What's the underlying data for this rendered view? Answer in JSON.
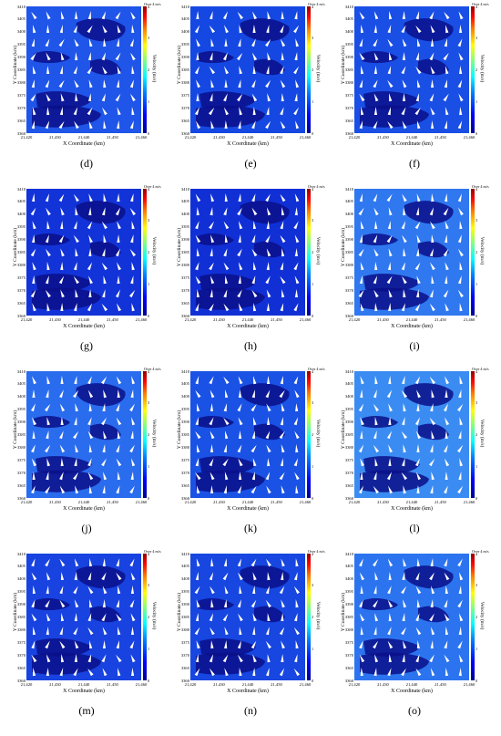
{
  "axes": {
    "x_label": "X Coordinate (km)",
    "y_label": "Y Coordinate (km)",
    "x_ticks": [
      "21,420",
      "21,430",
      "21,440",
      "21,450",
      "21,460"
    ],
    "y_ticks": [
      "3410",
      "3405",
      "3400",
      "3395",
      "3390",
      "3385",
      "3380",
      "3375",
      "3370",
      "3365",
      "3360"
    ],
    "xlim": [
      21420,
      21460
    ],
    "ylim": [
      3360,
      3410
    ]
  },
  "colorbar": {
    "label": "Velocity (m/s)",
    "over_label": "Over 4 m/s",
    "ticks": [
      "4",
      "3",
      "2",
      "1",
      "0"
    ],
    "range": [
      0,
      4
    ]
  },
  "panels": [
    {
      "caption": "(d)",
      "background": "#1f55e8"
    },
    {
      "caption": "(e)",
      "background": "#1548e2"
    },
    {
      "caption": "(f)",
      "background": "#1a4fe6"
    },
    {
      "caption": "(g)",
      "background": "#1233d8"
    },
    {
      "caption": "(h)",
      "background": "#1030d6"
    },
    {
      "caption": "(i)",
      "background": "#2f78f0"
    },
    {
      "caption": "(j)",
      "background": "#2a6cee"
    },
    {
      "caption": "(k)",
      "background": "#1a52e5"
    },
    {
      "caption": "(l)",
      "background": "#3b8cf2"
    },
    {
      "caption": "(m)",
      "background": "#1843e0"
    },
    {
      "caption": "(n)",
      "background": "#1746e0"
    },
    {
      "caption": "(o)",
      "background": "#2c74ef"
    }
  ]
}
